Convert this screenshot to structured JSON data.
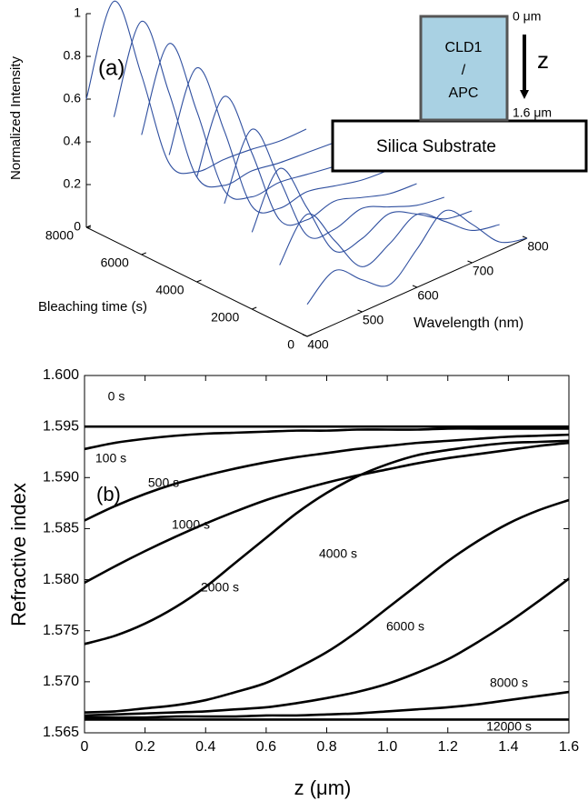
{
  "chart_data": [
    {
      "type": "waterfall",
      "panel_label": "(a)",
      "xlabel": "Wavelength (nm)",
      "ylabel": "Bleaching time (s)",
      "zlabel": "Normalized Intensity",
      "x": [
        400,
        450,
        500,
        550,
        600,
        650,
        700,
        750,
        800
      ],
      "xlim": [
        400,
        800
      ],
      "xticks": [
        400,
        500,
        600,
        700,
        800
      ],
      "ylim": [
        0,
        8000
      ],
      "yticks": [
        0,
        2000,
        4000,
        6000,
        8000
      ],
      "zlim": [
        0,
        1
      ],
      "zticks": [
        0,
        0.2,
        0.4,
        0.6,
        0.8,
        1
      ],
      "color": "#2f4f9f",
      "series": [
        {
          "time": 8000,
          "values": [
            0.6,
            1,
            0.6,
            0.13,
            0.03,
            0.03,
            0.02,
            0,
            0
          ]
        },
        {
          "time": 7000,
          "values": [
            0.58,
            0.97,
            0.58,
            0.13,
            0.03,
            0.04,
            0.02,
            0.01,
            0
          ]
        },
        {
          "time": 6000,
          "values": [
            0.56,
            0.93,
            0.56,
            0.13,
            0.04,
            0.05,
            0.03,
            0.01,
            0
          ]
        },
        {
          "time": 5000,
          "values": [
            0.53,
            0.88,
            0.53,
            0.12,
            0.05,
            0.07,
            0.04,
            0.01,
            0
          ]
        },
        {
          "time": 4000,
          "values": [
            0.49,
            0.81,
            0.49,
            0.12,
            0.06,
            0.09,
            0.05,
            0.01,
            0
          ]
        },
        {
          "time": 3000,
          "values": [
            0.43,
            0.72,
            0.43,
            0.11,
            0.08,
            0.12,
            0.07,
            0.02,
            0
          ]
        },
        {
          "time": 2000,
          "values": [
            0.36,
            0.6,
            0.36,
            0.1,
            0.1,
            0.16,
            0.1,
            0.02,
            0
          ]
        },
        {
          "time": 1000,
          "values": [
            0.27,
            0.45,
            0.27,
            0.09,
            0.14,
            0.22,
            0.13,
            0.03,
            0
          ]
        },
        {
          "time": 0,
          "values": [
            0.15,
            0.25,
            0.15,
            0.07,
            0.18,
            0.3,
            0.18,
            0.04,
            0
          ]
        }
      ],
      "inset": {
        "layer_label": [
          "CLD1",
          "/",
          "APC"
        ],
        "top_label": "0 μm",
        "bottom_label": "1.6 μm",
        "axis_label": "z",
        "substrate_label": "Silica Substrate",
        "layer_color": "#a9d1e3"
      }
    },
    {
      "type": "line",
      "panel_label": "(b)",
      "xlabel": "z (μm)",
      "ylabel": "Refractive index",
      "x": [
        0,
        0.1,
        0.2,
        0.3,
        0.4,
        0.5,
        0.6,
        0.7,
        0.8,
        0.9,
        1.0,
        1.1,
        1.2,
        1.3,
        1.4,
        1.5,
        1.6
      ],
      "xlim": [
        0,
        1.6
      ],
      "xticks": [
        0,
        0.2,
        0.4,
        0.6,
        0.8,
        {
          "value": 1,
          "label": "1.0"
        },
        1.2,
        1.4,
        1.6
      ],
      "ylim": [
        1.565,
        1.6
      ],
      "yticks": [
        1.565,
        {
          "value": 1.57,
          "label": "1.570"
        },
        1.575,
        {
          "value": 1.58,
          "label": "1.580"
        },
        1.585,
        {
          "value": 1.59,
          "label": "1.590"
        },
        1.595,
        {
          "value": 1.6,
          "label": "1.600"
        }
      ],
      "color": "#000000",
      "series": [
        {
          "name": "0 s",
          "values": [
            1.595,
            1.595,
            1.595,
            1.595,
            1.595,
            1.595,
            1.595,
            1.595,
            1.595,
            1.595,
            1.595,
            1.595,
            1.595,
            1.595,
            1.595,
            1.595,
            1.595
          ]
        },
        {
          "name": "100 s",
          "values": [
            1.5928,
            1.5934,
            1.5938,
            1.5941,
            1.5943,
            1.5944,
            1.5945,
            1.5946,
            1.5946,
            1.5947,
            1.5947,
            1.5947,
            1.5948,
            1.5948,
            1.5948,
            1.5948,
            1.5948
          ]
        },
        {
          "name": "500 s",
          "values": [
            1.5858,
            1.5872,
            1.5884,
            1.5894,
            1.5902,
            1.5909,
            1.5915,
            1.592,
            1.5924,
            1.5928,
            1.5931,
            1.5934,
            1.5936,
            1.5938,
            1.594,
            1.5941,
            1.5942
          ]
        },
        {
          "name": "1000 s",
          "values": [
            1.5797,
            1.5813,
            1.5828,
            1.5842,
            1.5855,
            1.5867,
            1.5878,
            1.5887,
            1.5895,
            1.5902,
            1.5908,
            1.5914,
            1.5919,
            1.5923,
            1.5927,
            1.5931,
            1.5934
          ]
        },
        {
          "name": "2000 s",
          "values": [
            1.5737,
            1.5745,
            1.5757,
            1.5773,
            1.5793,
            1.5817,
            1.5841,
            1.5865,
            1.5885,
            1.5901,
            1.5913,
            1.5922,
            1.5927,
            1.5931,
            1.5934,
            1.5935,
            1.5936
          ]
        },
        {
          "name": "4000 s",
          "values": [
            1.567,
            1.5671,
            1.5674,
            1.5677,
            1.5682,
            1.569,
            1.5699,
            1.5713,
            1.5729,
            1.5749,
            1.5772,
            1.5795,
            1.5818,
            1.5838,
            1.5855,
            1.5868,
            1.5878
          ]
        },
        {
          "name": "6000 s",
          "values": [
            1.5667,
            1.5668,
            1.5669,
            1.567,
            1.5671,
            1.5673,
            1.5675,
            1.5679,
            1.5684,
            1.569,
            1.5698,
            1.5709,
            1.5722,
            1.5739,
            1.5758,
            1.5779,
            1.5801
          ]
        },
        {
          "name": "8000 s",
          "values": [
            1.5665,
            1.5665,
            1.5665,
            1.5666,
            1.5666,
            1.5666,
            1.5667,
            1.5667,
            1.5668,
            1.5669,
            1.5671,
            1.5673,
            1.5675,
            1.5678,
            1.5682,
            1.5686,
            1.569
          ]
        },
        {
          "name": "12000 s",
          "values": [
            1.5663,
            1.5663,
            1.5663,
            1.5663,
            1.5663,
            1.5663,
            1.5663,
            1.5663,
            1.5663,
            1.5663,
            1.5663,
            1.5663,
            1.5663,
            1.5663,
            1.5663,
            1.5663,
            1.5663
          ]
        }
      ]
    }
  ]
}
